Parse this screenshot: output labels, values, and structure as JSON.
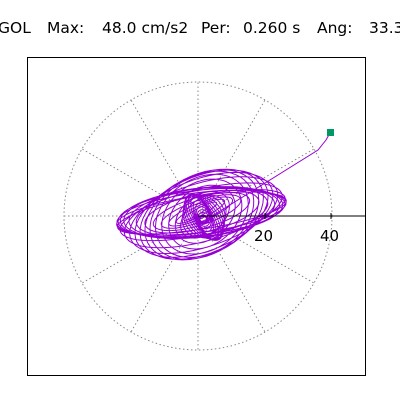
{
  "header": {
    "station": "GOL",
    "max_label": "Max:",
    "max_value": "48.0 cm/s2",
    "period_label": "Per:",
    "period_value": "0.260 s",
    "angle_label": "Ang:",
    "angle_value": "33.3"
  },
  "plot": {
    "tick_labels": [
      "20",
      "40"
    ],
    "trace_color": "#9400D3",
    "marker_color": "#009966",
    "grid_color": "#888888"
  }
}
